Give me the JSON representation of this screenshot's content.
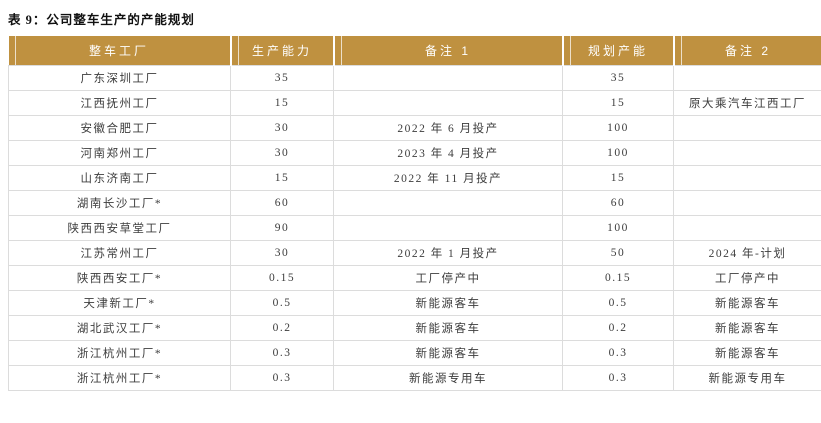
{
  "title": "表 9：公司整车生产的产能规划",
  "table": {
    "columns": [
      "整车工厂",
      "生产能力",
      "备注 1",
      "规划产能",
      "备注 2"
    ],
    "rows": [
      [
        "广东深圳工厂",
        "35",
        "",
        "35",
        ""
      ],
      [
        "江西抚州工厂",
        "15",
        "",
        "15",
        "原大乘汽车江西工厂"
      ],
      [
        "安徽合肥工厂",
        "30",
        "2022 年 6 月投产",
        "100",
        ""
      ],
      [
        "河南郑州工厂",
        "30",
        "2023 年 4 月投产",
        "100",
        ""
      ],
      [
        "山东济南工厂",
        "15",
        "2022 年 11 月投产",
        "15",
        ""
      ],
      [
        "湖南长沙工厂*",
        "60",
        "",
        "60",
        ""
      ],
      [
        "陕西西安草堂工厂",
        "90",
        "",
        "100",
        ""
      ],
      [
        "江苏常州工厂",
        "30",
        "2022 年 1 月投产",
        "50",
        "2024 年-计划"
      ],
      [
        "陕西西安工厂*",
        "0.15",
        "工厂停产中",
        "0.15",
        "工厂停产中"
      ],
      [
        "天津新工厂*",
        "0.5",
        "新能源客车",
        "0.5",
        "新能源客车"
      ],
      [
        "湖北武汉工厂*",
        "0.2",
        "新能源客车",
        "0.2",
        "新能源客车"
      ],
      [
        "浙江杭州工厂*",
        "0.3",
        "新能源客车",
        "0.3",
        "新能源客车"
      ],
      [
        "浙江杭州工厂*",
        "0.3",
        "新能源专用车",
        "0.3",
        "新能源专用车"
      ]
    ]
  },
  "colors": {
    "header_bg": "#BF9140",
    "header_text": "#FFFFFF",
    "grid_border": "#DCDCDC",
    "body_text": "#3D3D3D",
    "title_text": "#111111",
    "page_bg": "#FFFFFF"
  }
}
